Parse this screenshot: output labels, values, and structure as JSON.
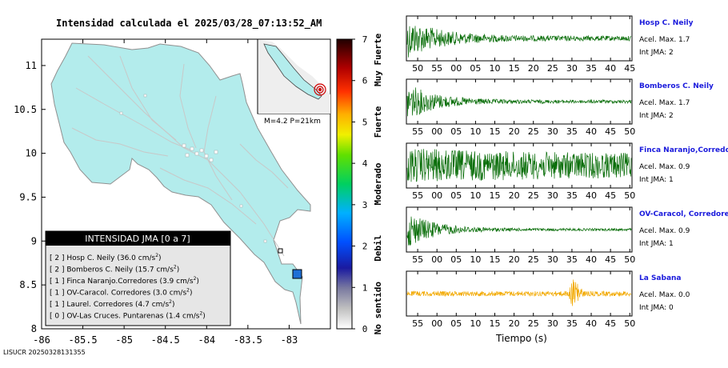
{
  "map": {
    "title": "Intensidad calculada el 2025/03/28_07:13:52_AM",
    "x_ticks": [
      "-86",
      "-85.5",
      "-85",
      "-84.5",
      "-84",
      "-83.5",
      "-83"
    ],
    "y_ticks": [
      "11",
      "10.5",
      "10",
      "9.5",
      "9",
      "8.5",
      "8"
    ],
    "inset_label": "M=4.2 P=21km",
    "colorbar": {
      "ticks": [
        "7",
        "6",
        "5",
        "4",
        "3",
        "2",
        "1",
        "0"
      ],
      "categories": [
        "Muy Fuerte",
        "Fuerte",
        "Moderado",
        "Debil",
        "No sentido"
      ]
    },
    "legend": {
      "title": "INTENSIDAD JMA [0 a 7]",
      "entries": [
        {
          "level": "[ 2 ]",
          "text": "Hosp C. Neily (36.0 cm/s",
          "sup": "2",
          "tail": ")"
        },
        {
          "level": "[ 2 ]",
          "text": "Bomberos C. Neily (15.7 cm/s",
          "sup": "2",
          "tail": ")"
        },
        {
          "level": "[ 1 ]",
          "text": "Finca Naranjo.Corredores (3.9 cm/s",
          "sup": "2",
          "tail": ")"
        },
        {
          "level": "[ 1 ]",
          "text": "OV-Caracol. Corredores (3.0 cm/s",
          "sup": "2",
          "tail": ")"
        },
        {
          "level": "[ 1 ]",
          "text": "Laurel. Corredores (4.7 cm/s",
          "sup": "2",
          "tail": ")"
        },
        {
          "level": "[ 0 ]",
          "text": "OV-Las Cruces. Puntarenas (1.4 cm/s",
          "sup": "2",
          "tail": ")"
        }
      ]
    },
    "footer_code": "LISUCR 20250328131355",
    "colors": {
      "land": "#b3ecec",
      "marker": "#1e6fd6",
      "title_bar": "#000000",
      "legend_bg": "#e6e6e6"
    }
  },
  "seismograms": {
    "time_axis_label": "Tiempo (s)",
    "stations": [
      {
        "name": "Hosp C. Neily",
        "acel": "Acel. Max. 1.7",
        "int": "Int JMA: 2",
        "color": "#0a6e0a",
        "ticks": [
          "50",
          "55",
          "00",
          "05",
          "10",
          "15",
          "20",
          "25",
          "30",
          "35",
          "40",
          "45"
        ],
        "first_offset": 0.05
      },
      {
        "name": "Bomberos C. Neily",
        "acel": "Acel. Max. 1.7",
        "int": "Int JMA: 2",
        "color": "#0a6e0a",
        "ticks": [
          "55",
          "00",
          "05",
          "10",
          "15",
          "20",
          "25",
          "30",
          "35",
          "40",
          "45",
          "50"
        ],
        "first_offset": 0.05
      },
      {
        "name": "Finca Naranjo,Corredores",
        "acel": "Acel. Max. 0.9",
        "int": "Int JMA: 1",
        "color": "#0a6e0a",
        "ticks": [
          "55",
          "00",
          "05",
          "10",
          "15",
          "20",
          "25",
          "30",
          "35",
          "40",
          "45",
          "50"
        ],
        "first_offset": 0.05
      },
      {
        "name": "OV-Caracol, Corredores",
        "acel": "Acel. Max. 0.9",
        "int": "Int JMA: 1",
        "color": "#0a6e0a",
        "ticks": [
          "55",
          "00",
          "05",
          "10",
          "15",
          "20",
          "25",
          "30",
          "35",
          "40",
          "45",
          "50"
        ],
        "first_offset": 0.05
      },
      {
        "name": "La Sabana",
        "acel": "Acel. Max. 0.0",
        "int": "Int JMA: 0",
        "color": "#f2a900",
        "ticks": [
          "55",
          "00",
          "05",
          "10",
          "15",
          "20",
          "25",
          "30",
          "35",
          "40",
          "45",
          "50"
        ],
        "first_offset": 0.05
      }
    ]
  },
  "chart_data": [
    {
      "type": "map",
      "title": "Intensidad calculada el 2025/03/28_07:13:52_AM",
      "xlim": [
        -86,
        -82.5
      ],
      "ylim": [
        8,
        11.3
      ],
      "grid": false,
      "stations": [
        {
          "name": "Hosp C. Neily",
          "intensity": 2,
          "pga_cm_s2": 36.0
        },
        {
          "name": "Bomberos C. Neily",
          "intensity": 2,
          "pga_cm_s2": 15.7
        },
        {
          "name": "Finca Naranjo.Corredores",
          "intensity": 1,
          "pga_cm_s2": 3.9
        },
        {
          "name": "OV-Caracol. Corredores",
          "intensity": 1,
          "pga_cm_s2": 3.0
        },
        {
          "name": "Laurel. Corredores",
          "intensity": 1,
          "pga_cm_s2": 4.7
        },
        {
          "name": "OV-Las Cruces. Puntarenas",
          "intensity": 0,
          "pga_cm_s2": 1.4
        }
      ],
      "event": {
        "magnitude": 4.2,
        "depth_km": 21,
        "lon": -82.95,
        "lat": 8.6
      },
      "colorbar_range": [
        0,
        7
      ]
    },
    {
      "type": "line",
      "xlabel": "Tiempo (s)",
      "series": [
        {
          "name": "Hosp C. Neily",
          "acel_max": 1.7,
          "int_jma": 2
        },
        {
          "name": "Bomberos C. Neily",
          "acel_max": 1.7,
          "int_jma": 2
        },
        {
          "name": "Finca Naranjo,Corredores",
          "acel_max": 0.9,
          "int_jma": 1
        },
        {
          "name": "OV-Caracol, Corredores",
          "acel_max": 0.9,
          "int_jma": 1
        },
        {
          "name": "La Sabana",
          "acel_max": 0.0,
          "int_jma": 0
        }
      ]
    }
  ]
}
